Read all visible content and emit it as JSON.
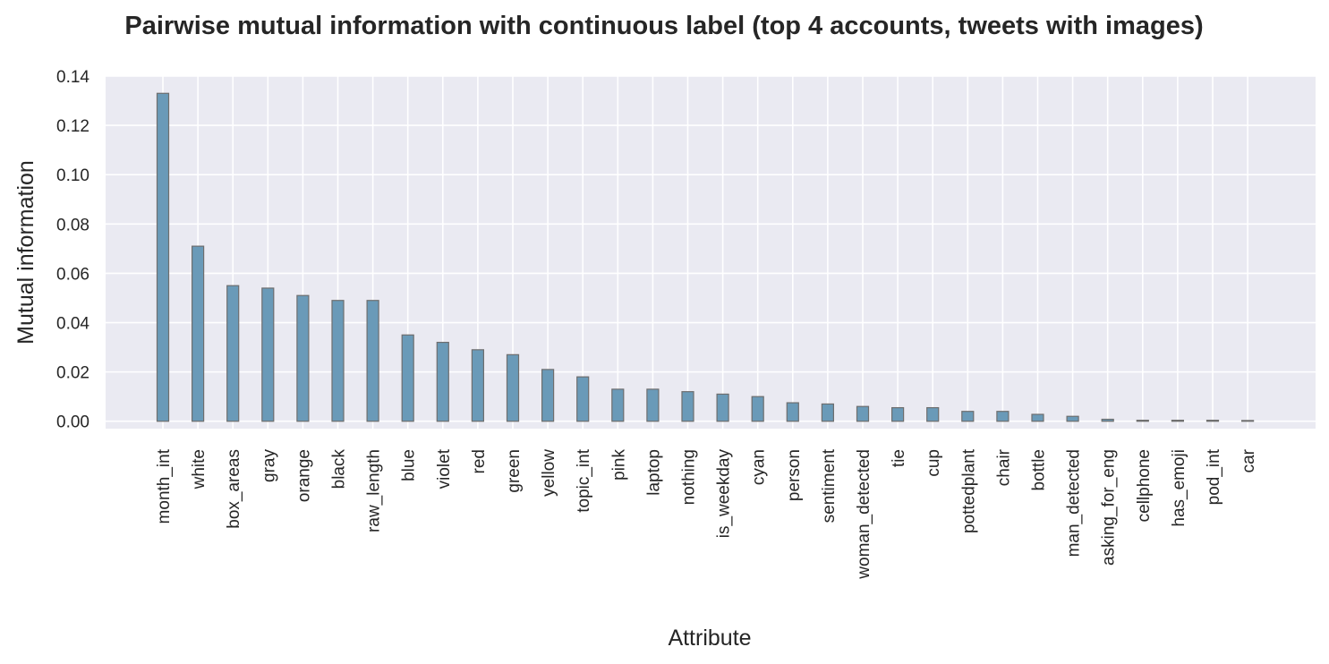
{
  "chart_data": {
    "type": "bar",
    "title": "Pairwise mutual information with continuous label (top 4 accounts, tweets with images)",
    "xlabel": "Attribute",
    "ylabel": "Mutual information",
    "ylim": [
      -0.003,
      0.14
    ],
    "yticks": [
      0.0,
      0.02,
      0.04,
      0.06,
      0.08,
      0.1,
      0.12,
      0.14
    ],
    "ytick_labels": [
      "0.00",
      "0.02",
      "0.04",
      "0.06",
      "0.08",
      "0.10",
      "0.12",
      "0.14"
    ],
    "grid": true,
    "categories": [
      "month_int",
      "white",
      "box_areas",
      "gray",
      "orange",
      "black",
      "raw_length",
      "blue",
      "violet",
      "red",
      "green",
      "yellow",
      "topic_int",
      "pink",
      "laptop",
      "nothing",
      "is_weekday",
      "cyan",
      "person",
      "sentiment",
      "woman_detected",
      "tie",
      "cup",
      "pottedplant",
      "chair",
      "bottle",
      "man_detected",
      "asking_for_eng",
      "cellphone",
      "has_emoji",
      "pod_int",
      "car"
    ],
    "values": [
      0.133,
      0.071,
      0.055,
      0.054,
      0.051,
      0.049,
      0.049,
      0.035,
      0.032,
      0.029,
      0.027,
      0.021,
      0.018,
      0.013,
      0.013,
      0.012,
      0.011,
      0.01,
      0.0075,
      0.007,
      0.006,
      0.0055,
      0.0055,
      0.004,
      0.004,
      0.0028,
      0.002,
      0.0008,
      0.0004,
      0.0004,
      0.0004,
      0.0003
    ],
    "colors": {
      "bar_fill": "#6a9ab8",
      "bar_edge": "#6e6e6e",
      "plot_background": "#eaeaf2",
      "grid": "#ffffff",
      "text": "#262626"
    }
  }
}
